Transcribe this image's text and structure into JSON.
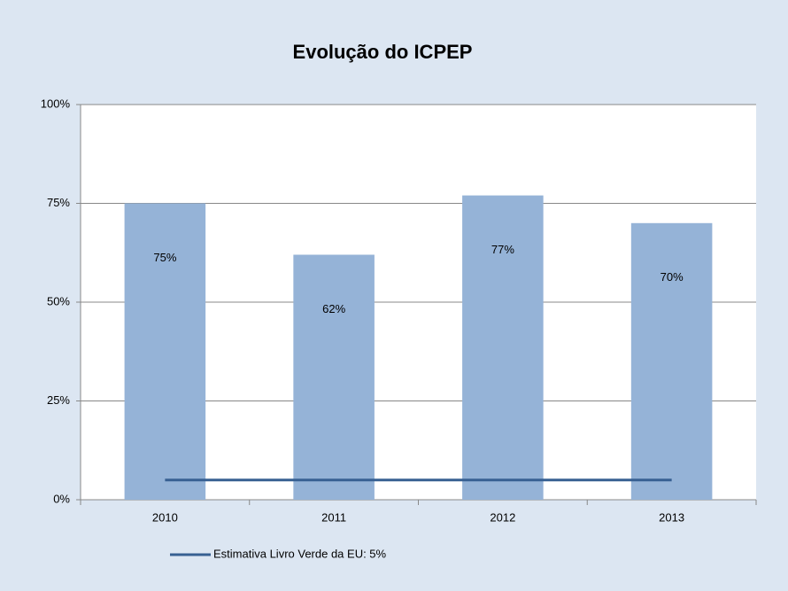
{
  "chart_data": {
    "type": "bar",
    "title": "Evolução do ICPEP",
    "categories": [
      "2010",
      "2011",
      "2012",
      "2013"
    ],
    "series": [
      {
        "type": "bar",
        "color": "#95b3d7",
        "values": [
          75,
          62,
          77,
          70
        ],
        "value_labels": [
          "75%",
          "62%",
          "77%",
          "70%"
        ]
      },
      {
        "type": "line",
        "name": "Estimativa Livro Verde da EU: 5%",
        "color": "#376092",
        "values": [
          5,
          5,
          5,
          5
        ]
      }
    ],
    "ylim": [
      0,
      100
    ],
    "yticks": [
      {
        "value": 0,
        "label": "0%"
      },
      {
        "value": 25,
        "label": "25%"
      },
      {
        "value": 50,
        "label": "50%"
      },
      {
        "value": 75,
        "label": "75%"
      },
      {
        "value": 100,
        "label": "100%"
      }
    ],
    "grid": true,
    "legend": "bottom"
  }
}
